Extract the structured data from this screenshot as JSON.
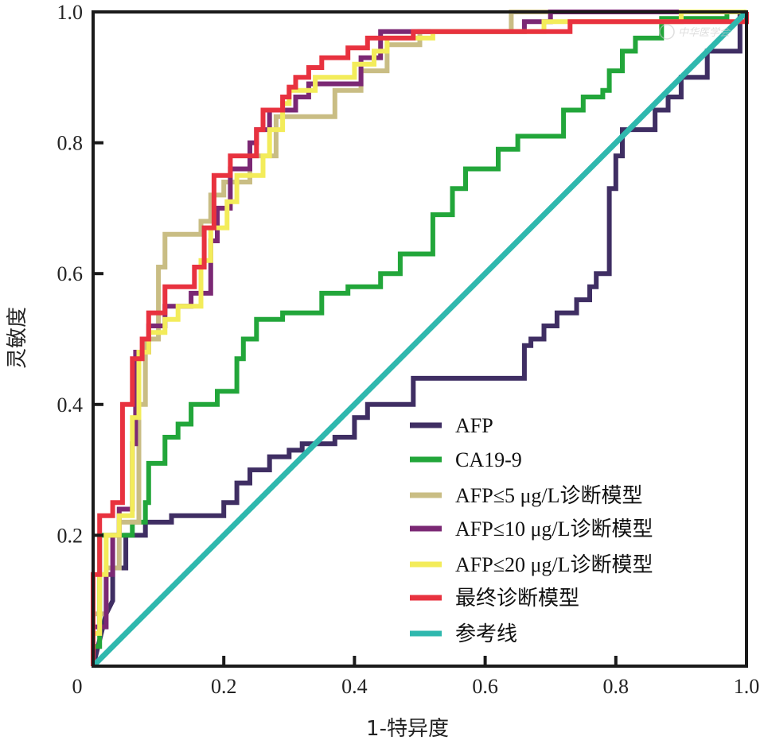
{
  "chart_data": {
    "type": "line",
    "title": "",
    "xlabel": "1-特异度",
    "ylabel": "灵敏度",
    "xlim": [
      0,
      1
    ],
    "ylim": [
      0,
      1
    ],
    "xticks": [
      {
        "value": 0,
        "label": "0"
      },
      {
        "value": 0.2,
        "label": "0.2"
      },
      {
        "value": 0.4,
        "label": "0.4"
      },
      {
        "value": 0.6,
        "label": "0.6"
      },
      {
        "value": 0.8,
        "label": "0.8"
      },
      {
        "value": 1.0,
        "label": "1.0"
      }
    ],
    "yticks": [
      {
        "value": 0.2,
        "label": "0.2"
      },
      {
        "value": 0.4,
        "label": "0.4"
      },
      {
        "value": 0.6,
        "label": "0.6"
      },
      {
        "value": 0.8,
        "label": "0.8"
      },
      {
        "value": 1.0,
        "label": "1.0"
      }
    ],
    "grid": false,
    "legend_position": "bottom-right",
    "watermark": "中华医学会",
    "series": [
      {
        "name": "AFP",
        "color": "#3f2e63",
        "points": [
          [
            0,
            0
          ],
          [
            0.02,
            0.08
          ],
          [
            0.03,
            0.1
          ],
          [
            0.03,
            0.15
          ],
          [
            0.05,
            0.15
          ],
          [
            0.05,
            0.2
          ],
          [
            0.08,
            0.2
          ],
          [
            0.08,
            0.22
          ],
          [
            0.12,
            0.22
          ],
          [
            0.12,
            0.23
          ],
          [
            0.2,
            0.23
          ],
          [
            0.2,
            0.25
          ],
          [
            0.22,
            0.25
          ],
          [
            0.22,
            0.28
          ],
          [
            0.24,
            0.28
          ],
          [
            0.24,
            0.3
          ],
          [
            0.27,
            0.3
          ],
          [
            0.27,
            0.32
          ],
          [
            0.3,
            0.32
          ],
          [
            0.3,
            0.33
          ],
          [
            0.32,
            0.33
          ],
          [
            0.32,
            0.34
          ],
          [
            0.37,
            0.34
          ],
          [
            0.37,
            0.35
          ],
          [
            0.4,
            0.35
          ],
          [
            0.4,
            0.38
          ],
          [
            0.42,
            0.38
          ],
          [
            0.42,
            0.4
          ],
          [
            0.49,
            0.4
          ],
          [
            0.49,
            0.44
          ],
          [
            0.66,
            0.44
          ],
          [
            0.66,
            0.49
          ],
          [
            0.67,
            0.49
          ],
          [
            0.67,
            0.5
          ],
          [
            0.69,
            0.5
          ],
          [
            0.69,
            0.52
          ],
          [
            0.71,
            0.52
          ],
          [
            0.71,
            0.54
          ],
          [
            0.74,
            0.54
          ],
          [
            0.74,
            0.56
          ],
          [
            0.76,
            0.56
          ],
          [
            0.76,
            0.58
          ],
          [
            0.77,
            0.58
          ],
          [
            0.77,
            0.6
          ],
          [
            0.79,
            0.6
          ],
          [
            0.79,
            0.73
          ],
          [
            0.8,
            0.73
          ],
          [
            0.8,
            0.78
          ],
          [
            0.81,
            0.78
          ],
          [
            0.81,
            0.82
          ],
          [
            0.86,
            0.82
          ],
          [
            0.86,
            0.85
          ],
          [
            0.88,
            0.85
          ],
          [
            0.88,
            0.87
          ],
          [
            0.9,
            0.87
          ],
          [
            0.9,
            0.9
          ],
          [
            0.94,
            0.9
          ],
          [
            0.94,
            0.94
          ],
          [
            0.99,
            0.94
          ],
          [
            0.99,
            1
          ],
          [
            1,
            1
          ]
        ]
      },
      {
        "name": "CA19-9",
        "color": "#22a63a",
        "points": [
          [
            0,
            0
          ],
          [
            0,
            0.03
          ],
          [
            0.01,
            0.03
          ],
          [
            0.01,
            0.2
          ],
          [
            0.06,
            0.2
          ],
          [
            0.06,
            0.22
          ],
          [
            0.08,
            0.22
          ],
          [
            0.08,
            0.25
          ],
          [
            0.085,
            0.25
          ],
          [
            0.085,
            0.31
          ],
          [
            0.11,
            0.31
          ],
          [
            0.11,
            0.35
          ],
          [
            0.13,
            0.35
          ],
          [
            0.13,
            0.37
          ],
          [
            0.15,
            0.37
          ],
          [
            0.15,
            0.4
          ],
          [
            0.19,
            0.4
          ],
          [
            0.19,
            0.42
          ],
          [
            0.22,
            0.42
          ],
          [
            0.22,
            0.47
          ],
          [
            0.23,
            0.47
          ],
          [
            0.23,
            0.5
          ],
          [
            0.25,
            0.5
          ],
          [
            0.25,
            0.53
          ],
          [
            0.29,
            0.53
          ],
          [
            0.29,
            0.54
          ],
          [
            0.35,
            0.54
          ],
          [
            0.35,
            0.57
          ],
          [
            0.39,
            0.57
          ],
          [
            0.39,
            0.58
          ],
          [
            0.44,
            0.58
          ],
          [
            0.44,
            0.6
          ],
          [
            0.47,
            0.6
          ],
          [
            0.47,
            0.63
          ],
          [
            0.52,
            0.63
          ],
          [
            0.52,
            0.69
          ],
          [
            0.55,
            0.69
          ],
          [
            0.55,
            0.73
          ],
          [
            0.57,
            0.73
          ],
          [
            0.57,
            0.76
          ],
          [
            0.62,
            0.76
          ],
          [
            0.62,
            0.79
          ],
          [
            0.65,
            0.79
          ],
          [
            0.65,
            0.81
          ],
          [
            0.72,
            0.81
          ],
          [
            0.72,
            0.85
          ],
          [
            0.75,
            0.85
          ],
          [
            0.75,
            0.87
          ],
          [
            0.78,
            0.87
          ],
          [
            0.78,
            0.88
          ],
          [
            0.79,
            0.88
          ],
          [
            0.79,
            0.91
          ],
          [
            0.81,
            0.91
          ],
          [
            0.81,
            0.94
          ],
          [
            0.83,
            0.94
          ],
          [
            0.83,
            0.96
          ],
          [
            0.87,
            0.96
          ],
          [
            0.87,
            0.99
          ],
          [
            0.97,
            0.99
          ],
          [
            0.97,
            1
          ],
          [
            1,
            1
          ]
        ]
      },
      {
        "name": "AFP≤5 μg/L诊断模型",
        "color": "#c9bd84",
        "points": [
          [
            0,
            0
          ],
          [
            0,
            0.08
          ],
          [
            0.02,
            0.08
          ],
          [
            0.02,
            0.15
          ],
          [
            0.04,
            0.15
          ],
          [
            0.04,
            0.22
          ],
          [
            0.07,
            0.22
          ],
          [
            0.07,
            0.4
          ],
          [
            0.08,
            0.4
          ],
          [
            0.08,
            0.5
          ],
          [
            0.1,
            0.5
          ],
          [
            0.1,
            0.61
          ],
          [
            0.11,
            0.61
          ],
          [
            0.11,
            0.66
          ],
          [
            0.165,
            0.66
          ],
          [
            0.165,
            0.68
          ],
          [
            0.18,
            0.68
          ],
          [
            0.18,
            0.72
          ],
          [
            0.2,
            0.72
          ],
          [
            0.2,
            0.74
          ],
          [
            0.24,
            0.74
          ],
          [
            0.24,
            0.78
          ],
          [
            0.28,
            0.78
          ],
          [
            0.28,
            0.84
          ],
          [
            0.37,
            0.84
          ],
          [
            0.37,
            0.88
          ],
          [
            0.41,
            0.88
          ],
          [
            0.41,
            0.91
          ],
          [
            0.45,
            0.91
          ],
          [
            0.45,
            0.95
          ],
          [
            0.5,
            0.95
          ],
          [
            0.5,
            0.97
          ],
          [
            0.64,
            0.97
          ],
          [
            0.64,
            1
          ],
          [
            1,
            1
          ]
        ]
      },
      {
        "name": "AFP≤10 μg/L诊断模型",
        "color": "#7b2874",
        "points": [
          [
            0,
            0
          ],
          [
            0,
            0.06
          ],
          [
            0.02,
            0.06
          ],
          [
            0.02,
            0.14
          ],
          [
            0.03,
            0.14
          ],
          [
            0.03,
            0.2
          ],
          [
            0.04,
            0.2
          ],
          [
            0.04,
            0.24
          ],
          [
            0.06,
            0.24
          ],
          [
            0.06,
            0.34
          ],
          [
            0.065,
            0.34
          ],
          [
            0.065,
            0.48
          ],
          [
            0.085,
            0.48
          ],
          [
            0.085,
            0.52
          ],
          [
            0.11,
            0.52
          ],
          [
            0.11,
            0.55
          ],
          [
            0.15,
            0.55
          ],
          [
            0.15,
            0.57
          ],
          [
            0.18,
            0.57
          ],
          [
            0.18,
            0.65
          ],
          [
            0.19,
            0.65
          ],
          [
            0.19,
            0.7
          ],
          [
            0.21,
            0.7
          ],
          [
            0.21,
            0.76
          ],
          [
            0.24,
            0.76
          ],
          [
            0.24,
            0.8
          ],
          [
            0.25,
            0.8
          ],
          [
            0.25,
            0.82
          ],
          [
            0.27,
            0.82
          ],
          [
            0.27,
            0.85
          ],
          [
            0.31,
            0.85
          ],
          [
            0.31,
            0.87
          ],
          [
            0.33,
            0.87
          ],
          [
            0.33,
            0.89
          ],
          [
            0.41,
            0.89
          ],
          [
            0.41,
            0.93
          ],
          [
            0.44,
            0.93
          ],
          [
            0.44,
            0.97
          ],
          [
            0.66,
            0.97
          ],
          [
            0.66,
            0.985
          ],
          [
            0.7,
            0.985
          ],
          [
            0.7,
            1
          ],
          [
            1,
            1
          ]
        ]
      },
      {
        "name": "AFP≤20 μg/L诊断模型",
        "color": "#f3ec5a",
        "points": [
          [
            0,
            0
          ],
          [
            0,
            0.05
          ],
          [
            0.01,
            0.05
          ],
          [
            0.01,
            0.14
          ],
          [
            0.02,
            0.14
          ],
          [
            0.02,
            0.2
          ],
          [
            0.04,
            0.2
          ],
          [
            0.04,
            0.23
          ],
          [
            0.06,
            0.23
          ],
          [
            0.06,
            0.38
          ],
          [
            0.07,
            0.38
          ],
          [
            0.07,
            0.48
          ],
          [
            0.085,
            0.48
          ],
          [
            0.085,
            0.51
          ],
          [
            0.11,
            0.51
          ],
          [
            0.11,
            0.53
          ],
          [
            0.13,
            0.53
          ],
          [
            0.13,
            0.55
          ],
          [
            0.165,
            0.55
          ],
          [
            0.165,
            0.62
          ],
          [
            0.18,
            0.62
          ],
          [
            0.18,
            0.67
          ],
          [
            0.205,
            0.67
          ],
          [
            0.205,
            0.71
          ],
          [
            0.22,
            0.71
          ],
          [
            0.22,
            0.75
          ],
          [
            0.26,
            0.75
          ],
          [
            0.26,
            0.78
          ],
          [
            0.27,
            0.78
          ],
          [
            0.27,
            0.82
          ],
          [
            0.29,
            0.82
          ],
          [
            0.29,
            0.86
          ],
          [
            0.3,
            0.86
          ],
          [
            0.3,
            0.88
          ],
          [
            0.34,
            0.88
          ],
          [
            0.34,
            0.9
          ],
          [
            0.4,
            0.9
          ],
          [
            0.4,
            0.92
          ],
          [
            0.43,
            0.92
          ],
          [
            0.43,
            0.94
          ],
          [
            0.45,
            0.94
          ],
          [
            0.45,
            0.96
          ],
          [
            0.52,
            0.96
          ],
          [
            0.52,
            0.97
          ],
          [
            0.69,
            0.97
          ],
          [
            0.69,
            0.985
          ],
          [
            0.9,
            0.985
          ],
          [
            0.9,
            1
          ],
          [
            1,
            1
          ]
        ]
      },
      {
        "name": "最终诊断模型",
        "color": "#e8323f",
        "points": [
          [
            0,
            0
          ],
          [
            0,
            0.14
          ],
          [
            0.01,
            0.14
          ],
          [
            0.01,
            0.23
          ],
          [
            0.03,
            0.23
          ],
          [
            0.03,
            0.25
          ],
          [
            0.045,
            0.25
          ],
          [
            0.045,
            0.4
          ],
          [
            0.06,
            0.4
          ],
          [
            0.06,
            0.47
          ],
          [
            0.075,
            0.47
          ],
          [
            0.075,
            0.5
          ],
          [
            0.085,
            0.5
          ],
          [
            0.085,
            0.54
          ],
          [
            0.11,
            0.54
          ],
          [
            0.11,
            0.58
          ],
          [
            0.155,
            0.58
          ],
          [
            0.155,
            0.61
          ],
          [
            0.17,
            0.61
          ],
          [
            0.17,
            0.67
          ],
          [
            0.185,
            0.67
          ],
          [
            0.185,
            0.75
          ],
          [
            0.21,
            0.75
          ],
          [
            0.21,
            0.78
          ],
          [
            0.25,
            0.78
          ],
          [
            0.25,
            0.82
          ],
          [
            0.26,
            0.82
          ],
          [
            0.26,
            0.85
          ],
          [
            0.29,
            0.85
          ],
          [
            0.29,
            0.87
          ],
          [
            0.3,
            0.87
          ],
          [
            0.3,
            0.885
          ],
          [
            0.31,
            0.885
          ],
          [
            0.31,
            0.9
          ],
          [
            0.33,
            0.9
          ],
          [
            0.33,
            0.915
          ],
          [
            0.35,
            0.915
          ],
          [
            0.35,
            0.93
          ],
          [
            0.39,
            0.93
          ],
          [
            0.39,
            0.945
          ],
          [
            0.42,
            0.945
          ],
          [
            0.42,
            0.96
          ],
          [
            0.49,
            0.96
          ],
          [
            0.49,
            0.97
          ],
          [
            0.73,
            0.97
          ],
          [
            0.73,
            0.985
          ],
          [
            1,
            0.985
          ],
          [
            1,
            1
          ]
        ]
      },
      {
        "name": "参考线",
        "color": "#2fb8ae",
        "points": [
          [
            0,
            0
          ],
          [
            1,
            1
          ]
        ]
      }
    ]
  }
}
